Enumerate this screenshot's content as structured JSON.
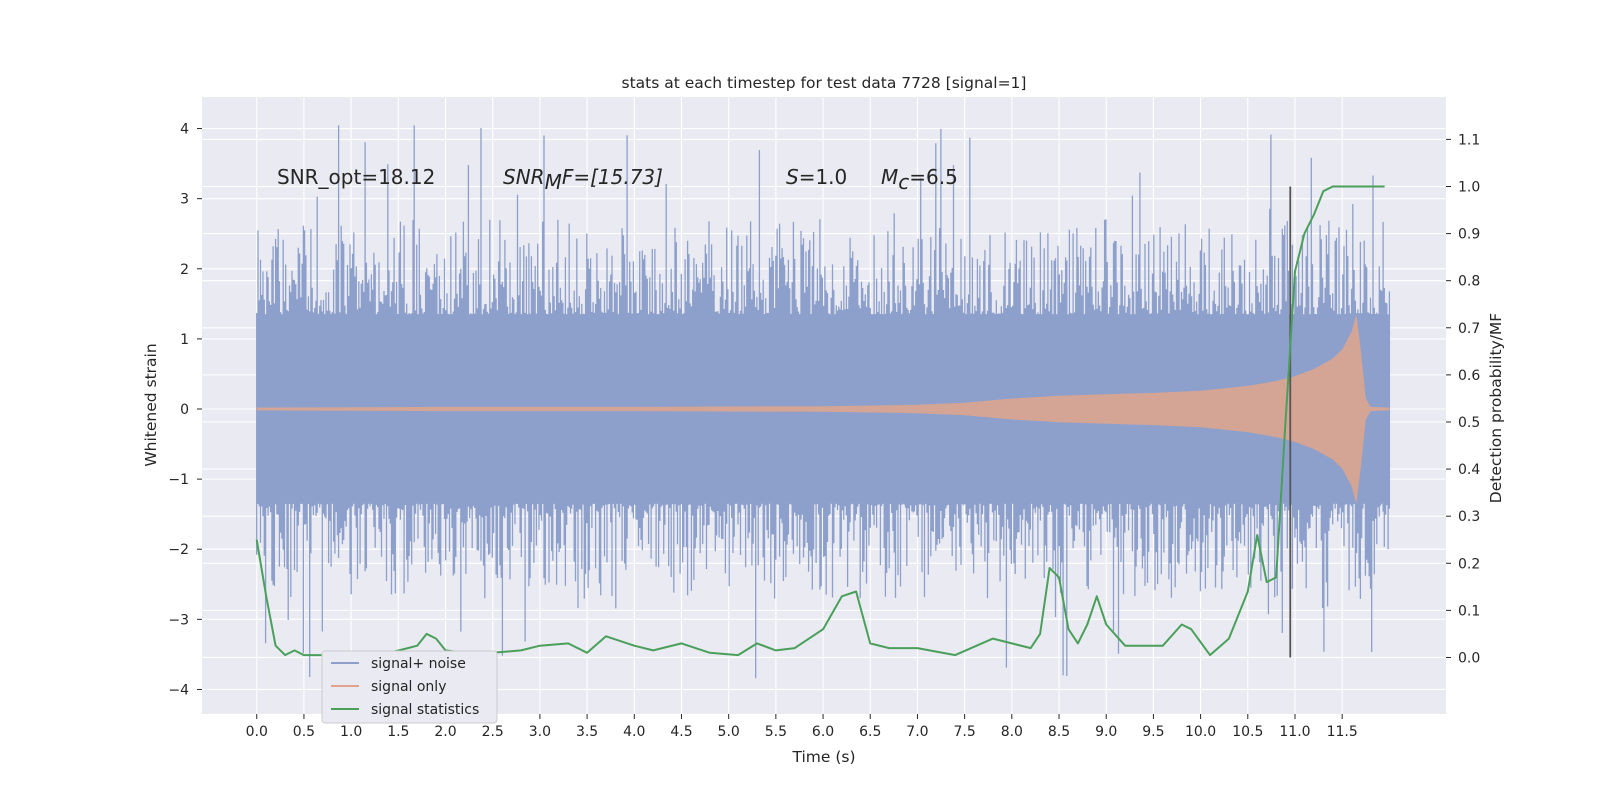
{
  "chart_data": {
    "type": "line",
    "title": "stats at each timestep for test data 7728 [signal=1]",
    "xlabel": "Time (s)",
    "ylabel": "Whitened strain",
    "y2label": "Detection probability/MF",
    "xlim": [
      -0.58,
      12.6
    ],
    "ylim": [
      -4.35,
      4.45
    ],
    "y2lim": [
      -0.12,
      1.19
    ],
    "x_ticks": [
      "0.0",
      "0.5",
      "1.0",
      "1.5",
      "2.0",
      "2.5",
      "3.0",
      "3.5",
      "4.0",
      "4.5",
      "5.0",
      "5.5",
      "6.0",
      "6.5",
      "7.0",
      "7.5",
      "8.0",
      "8.5",
      "9.0",
      "9.5",
      "10.0",
      "10.5",
      "11.0",
      "11.5"
    ],
    "y_ticks": [
      "4",
      "3",
      "2",
      "1",
      "0",
      "−1",
      "−2",
      "−3",
      "−4"
    ],
    "y2_ticks": [
      "1.1",
      "1.0",
      "0.9",
      "0.8",
      "0.7",
      "0.6",
      "0.5",
      "0.4",
      "0.3",
      "0.2",
      "0.1",
      "0.0"
    ],
    "grid": true,
    "legend_placement": "lower-left",
    "annotations": {
      "snr_opt": "SNR_opt=18.12",
      "snr_mf_main": "SNR",
      "snr_mf_sub": "M",
      "snr_mf_tail": "F=[15.73]",
      "s_var": "S",
      "s_val": "=1.0",
      "mc_var": "M",
      "mc_sub": "c",
      "mc_val": "=6.5"
    },
    "vline_x": 10.95,
    "noise_band": {
      "x_range": [
        0.0,
        12.0
      ],
      "core_amplitude": 1.35,
      "typical_peak": 2.2,
      "max_peak": 4.1,
      "min_peak": -3.85
    },
    "signal_envelope": {
      "x": [
        0.0,
        2.0,
        4.0,
        6.0,
        7.0,
        7.5,
        8.0,
        8.5,
        9.0,
        9.5,
        10.0,
        10.5,
        10.8,
        11.0,
        11.2,
        11.4,
        11.5,
        11.6,
        11.65,
        11.7,
        11.75,
        11.8,
        12.0
      ],
      "amplitude": [
        0.02,
        0.03,
        0.03,
        0.04,
        0.06,
        0.09,
        0.15,
        0.19,
        0.21,
        0.23,
        0.26,
        0.33,
        0.4,
        0.47,
        0.57,
        0.72,
        0.85,
        1.1,
        1.35,
        0.8,
        0.15,
        0.03,
        0.02
      ]
    },
    "series": [
      {
        "name": "signal+ noise",
        "color": "#8da0cb"
      },
      {
        "name": "signal only",
        "color": "#e0a48c"
      },
      {
        "name": "signal statistics",
        "color": "#4aa05a",
        "x": [
          0.0,
          0.1,
          0.2,
          0.3,
          0.4,
          0.5,
          0.7,
          1.0,
          1.2,
          1.4,
          1.6,
          1.7,
          1.8,
          1.9,
          2.0,
          2.2,
          2.5,
          2.8,
          3.0,
          3.3,
          3.5,
          3.7,
          4.0,
          4.2,
          4.5,
          4.8,
          5.1,
          5.3,
          5.5,
          5.7,
          6.0,
          6.2,
          6.35,
          6.5,
          6.7,
          7.0,
          7.4,
          7.8,
          8.0,
          8.2,
          8.3,
          8.4,
          8.5,
          8.6,
          8.7,
          8.8,
          8.9,
          9.0,
          9.2,
          9.6,
          9.8,
          9.9,
          10.1,
          10.3,
          10.5,
          10.6,
          10.7,
          10.8,
          10.9,
          11.0,
          11.1,
          11.2,
          11.3,
          11.4,
          11.6,
          11.8,
          11.95
        ],
        "values": [
          0.25,
          0.13,
          0.025,
          0.005,
          0.015,
          0.005,
          0.005,
          0.005,
          0.005,
          0.01,
          0.02,
          0.025,
          0.05,
          0.04,
          0.015,
          0.01,
          0.01,
          0.015,
          0.025,
          0.03,
          0.01,
          0.045,
          0.025,
          0.015,
          0.03,
          0.01,
          0.005,
          0.03,
          0.015,
          0.02,
          0.06,
          0.13,
          0.14,
          0.03,
          0.02,
          0.02,
          0.005,
          0.04,
          0.03,
          0.02,
          0.05,
          0.19,
          0.17,
          0.06,
          0.03,
          0.07,
          0.13,
          0.07,
          0.025,
          0.025,
          0.07,
          0.06,
          0.005,
          0.04,
          0.14,
          0.26,
          0.16,
          0.17,
          0.5,
          0.82,
          0.9,
          0.94,
          0.99,
          1.0,
          1.0,
          1.0,
          1.0
        ]
      }
    ]
  }
}
